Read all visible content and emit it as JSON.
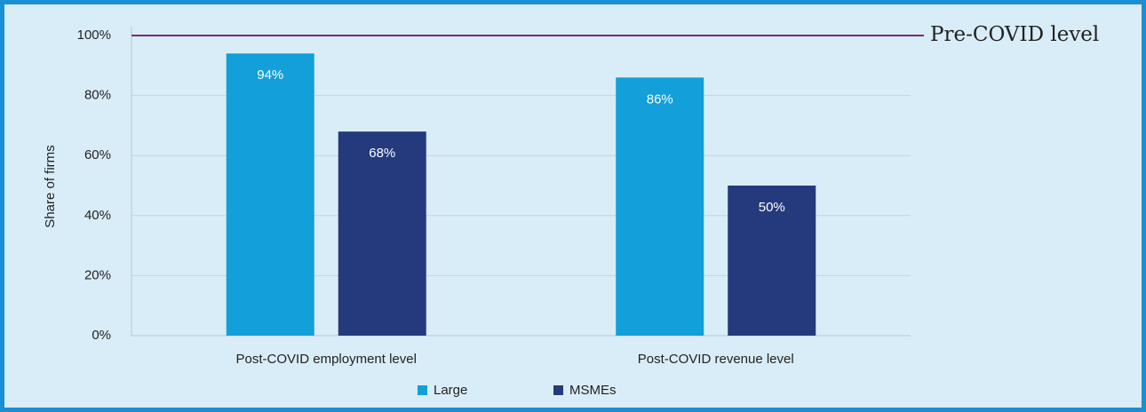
{
  "chart_data": {
    "type": "bar",
    "y_label": "Share of firms",
    "categories": [
      "Post-COVID employment level",
      "Post-COVID revenue level"
    ],
    "series": [
      {
        "name": "Large",
        "color": "#139fd9",
        "values": [
          94,
          86
        ],
        "value_labels": [
          "94%",
          "86%"
        ]
      },
      {
        "name": "MSMEs",
        "color": "#243a7d",
        "values": [
          68,
          50
        ],
        "value_labels": [
          "68%",
          "50%"
        ]
      }
    ],
    "ylim": [
      0,
      100
    ],
    "yticks": [
      {
        "value": 0,
        "label": "0%"
      },
      {
        "value": 20,
        "label": "20%"
      },
      {
        "value": 40,
        "label": "40%"
      },
      {
        "value": 60,
        "label": "60%"
      },
      {
        "value": 80,
        "label": "80%"
      },
      {
        "value": 100,
        "label": "100%"
      }
    ],
    "grid": true,
    "reference_line": {
      "value": 100,
      "label": "Pre-COVID level",
      "color": "#7b2a7f"
    },
    "legend": "bottom"
  }
}
